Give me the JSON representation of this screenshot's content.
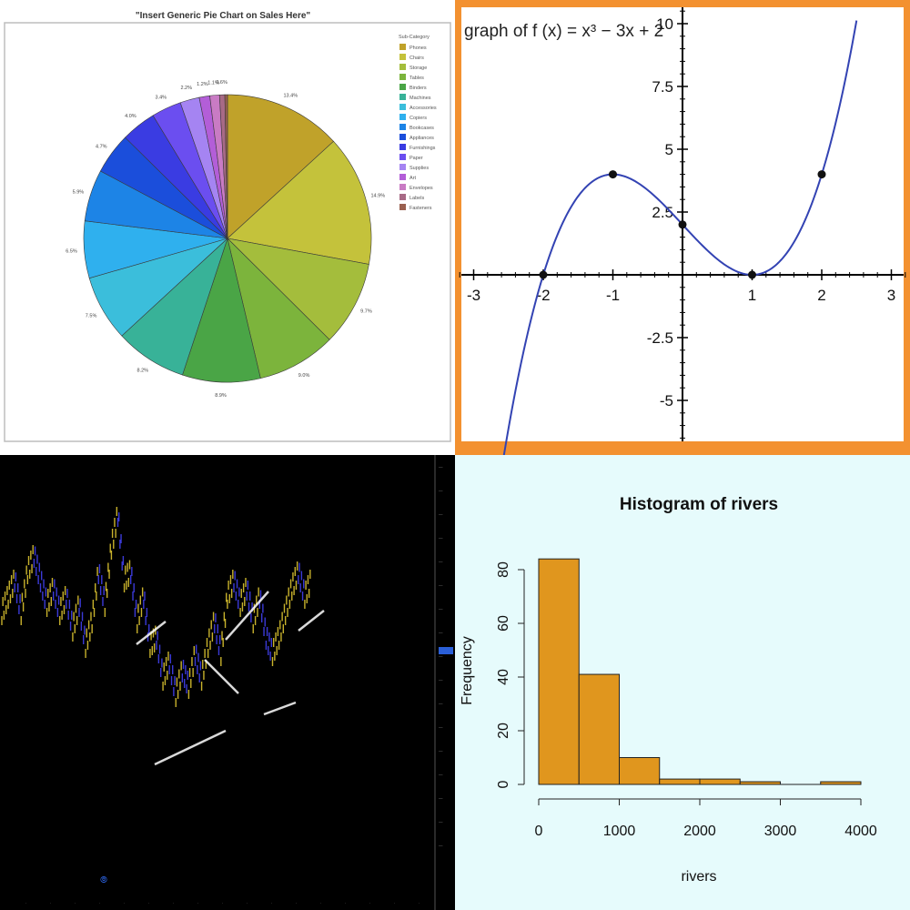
{
  "chart_data": [
    {
      "type": "pie",
      "title": "\"Insert Generic Pie Chart on Sales Here\"",
      "legend_title": "Sub-Category",
      "legend_position": "right",
      "slice_labels": [
        "13.4%",
        "14.9%",
        "9.7%",
        "9.0%",
        "8.9%",
        "8.2%",
        "7.5%",
        "6.5%",
        "5.9%",
        "4.7%",
        "4.0%",
        "3.4%",
        "2.2%",
        "1.2%",
        "1.1%",
        "0.6%"
      ],
      "slices": [
        {
          "name": "Phones",
          "value": 13.4,
          "color": "#c0a22a"
        },
        {
          "name": "Chairs",
          "value": 14.9,
          "color": "#c4c23b"
        },
        {
          "name": "Storage",
          "value": 9.7,
          "color": "#a4bd3c"
        },
        {
          "name": "Tables",
          "value": 9.0,
          "color": "#7cb43c"
        },
        {
          "name": "Binders",
          "value": 8.9,
          "color": "#4aa546"
        },
        {
          "name": "Machines",
          "value": 8.2,
          "color": "#38b298"
        },
        {
          "name": "Accessories",
          "value": 7.5,
          "color": "#3bbedb"
        },
        {
          "name": "Copiers",
          "value": 6.5,
          "color": "#2fb0ee"
        },
        {
          "name": "Bookcases",
          "value": 5.9,
          "color": "#1d84e6"
        },
        {
          "name": "Appliances",
          "value": 4.7,
          "color": "#1b4edb"
        },
        {
          "name": "Furnishings",
          "value": 4.0,
          "color": "#3a3ce2"
        },
        {
          "name": "Paper",
          "value": 3.4,
          "color": "#6b4ef0"
        },
        {
          "name": "Supplies",
          "value": 2.2,
          "color": "#a584f2"
        },
        {
          "name": "Art",
          "value": 1.2,
          "color": "#b35ed8"
        },
        {
          "name": "Envelopes",
          "value": 1.1,
          "color": "#c97bc4"
        },
        {
          "name": "Labels",
          "value": 0.6,
          "color": "#a86a86"
        },
        {
          "name": "Fasteners",
          "value": 0.3,
          "color": "#9a6050"
        }
      ]
    },
    {
      "type": "line",
      "title": "graph of f (x) = x³ − 3x + 2",
      "xlim": [
        -3.3,
        3.3
      ],
      "ylim": [
        -6.5,
        10.5
      ],
      "xticks": [
        -3,
        -2,
        -1,
        1,
        2,
        3
      ],
      "xtick_labels": [
        "-3",
        "-2",
        "-1",
        "1",
        "2",
        "3"
      ],
      "yticks": [
        10,
        7.5,
        5,
        2.5,
        -2.5,
        -5
      ],
      "ytick_labels": [
        "10",
        "7.5",
        "5",
        "2.5",
        "-2.5",
        "-5"
      ],
      "series": [
        {
          "function": "x^3-3x+2",
          "x_range": [
            -2.6,
            2.5
          ],
          "color": "#3343b3"
        }
      ],
      "points": [
        {
          "x": -2,
          "y": 0
        },
        {
          "x": -1,
          "y": 4
        },
        {
          "x": 0,
          "y": 2
        },
        {
          "x": 1,
          "y": 0
        },
        {
          "x": 2,
          "y": 4
        }
      ],
      "grid": false,
      "frame_color": "#f39130"
    },
    {
      "type": "line",
      "title": "",
      "note": "dark trading chart; price series with white trend lines; labels illegible",
      "series": [
        {
          "values": [
            51.5,
            52.5,
            53.5,
            51.5,
            54,
            55,
            53.5,
            52,
            53,
            51.5,
            52.5,
            50.5,
            52,
            49.5,
            51,
            54,
            52,
            55.5,
            57.5,
            53.5,
            54,
            51,
            52.5,
            49.5,
            50,
            47.5,
            48.5,
            46.5,
            48,
            47,
            49,
            47.5,
            49.5,
            51,
            49,
            52.5,
            53.5,
            52,
            53,
            51,
            52.5,
            50,
            49,
            50,
            51.5,
            53,
            54,
            52.5,
            53.5
          ]
        }
      ],
      "colors": [
        "#c8b22c",
        "#3b3ad8",
        "#ffffff"
      ]
    },
    {
      "type": "bar",
      "title": "Histogram of rivers",
      "xlabel": "rivers",
      "ylabel": "Frequency",
      "bins": [
        [
          0,
          500
        ],
        [
          500,
          1000
        ],
        [
          1000,
          1500
        ],
        [
          1500,
          2000
        ],
        [
          2000,
          2500
        ],
        [
          2500,
          3000
        ],
        [
          3000,
          3500
        ],
        [
          3500,
          4000
        ]
      ],
      "values": [
        84,
        41,
        10,
        2,
        2,
        1,
        0,
        1
      ],
      "xticks": [
        "0",
        "1000",
        "2000",
        "3000",
        "4000"
      ],
      "yticks": [
        "0",
        "20",
        "40",
        "60",
        "80"
      ],
      "xlim": [
        0,
        4000
      ],
      "ylim": [
        0,
        85
      ],
      "bar_color": "#e0961e"
    }
  ]
}
